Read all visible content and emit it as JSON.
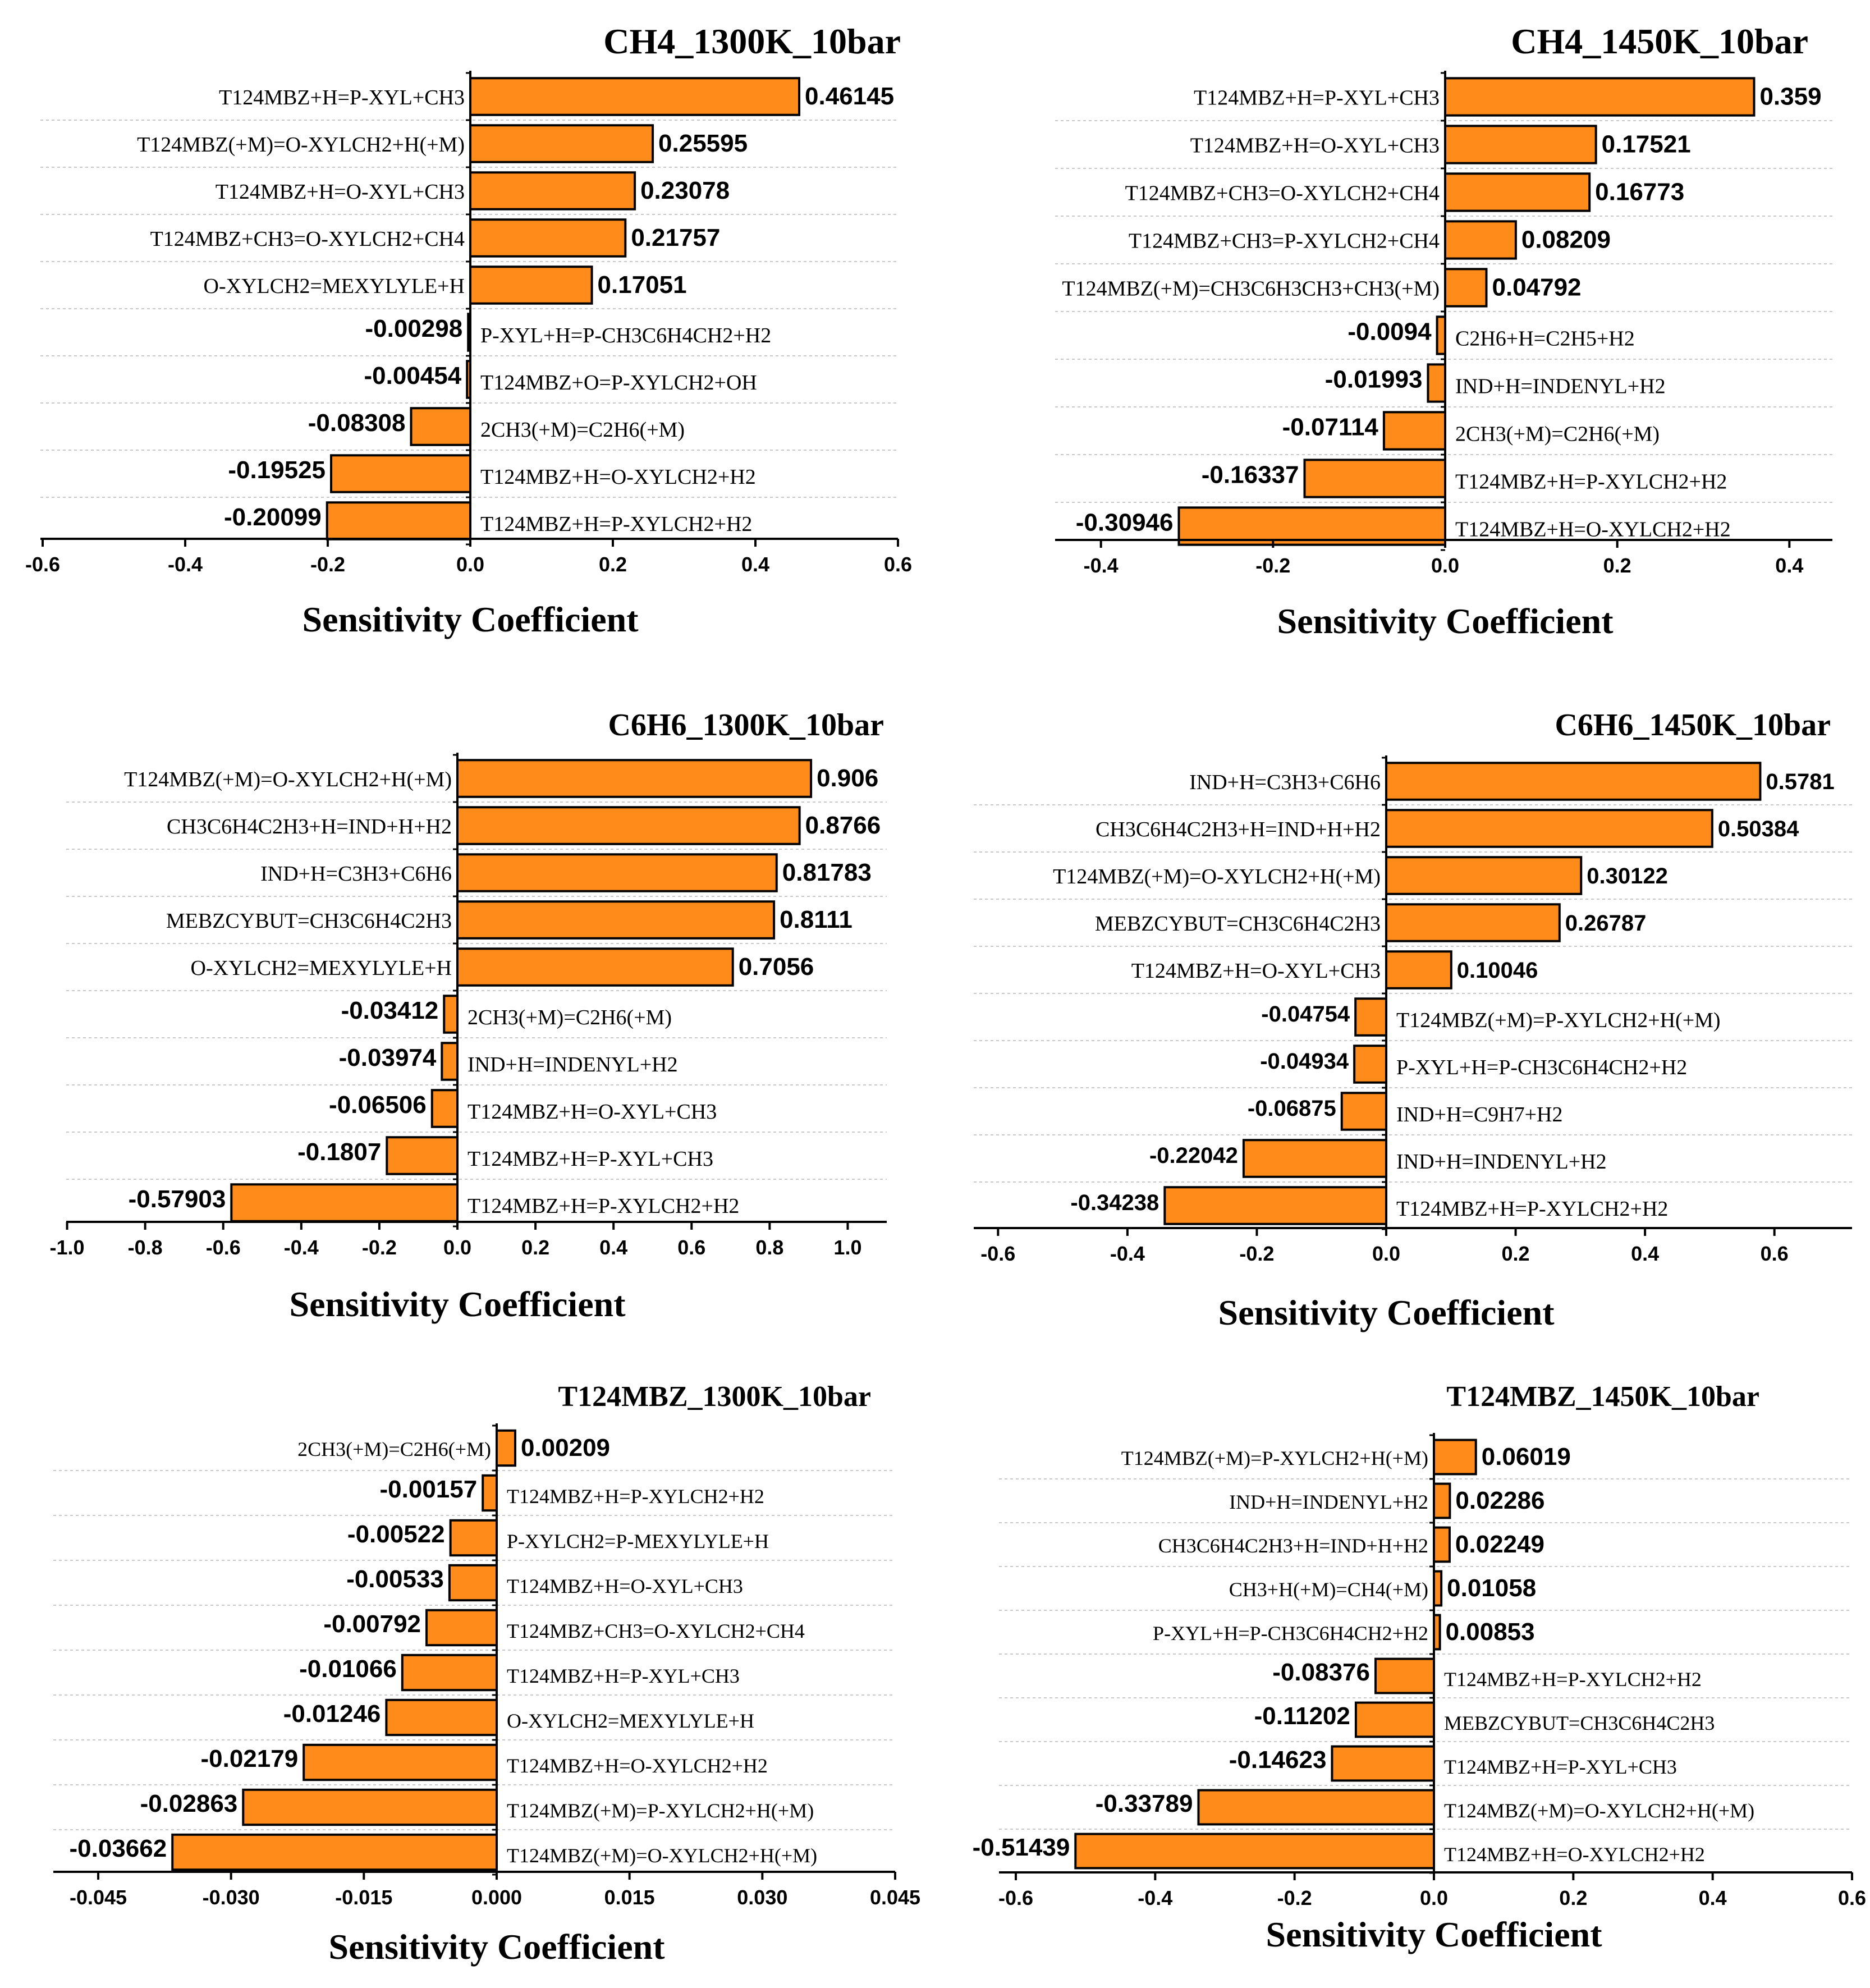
{
  "colors": {
    "bar": "#FF8C1A",
    "bar_edge": "#000000",
    "grid": "#C8C8C8",
    "axis": "#000000"
  },
  "chart_data": [
    {
      "type": "bar",
      "orientation": "horizontal",
      "title": "CH4_1300K_10bar",
      "xlabel": "Sensitivity Coefficient",
      "xlim": [
        -0.6,
        0.6
      ],
      "ticks": [
        -0.6,
        -0.4,
        -0.2,
        0.0,
        0.2,
        0.4,
        0.6
      ],
      "tick_labels": [
        "-0.6",
        "-0.4",
        "-0.2",
        "0.0",
        "0.2",
        "0.4",
        "0.6"
      ],
      "categories": [
        "T124MBZ+H=P-XYL+CH3",
        "T124MBZ(+M)=O-XYLCH2+H(+M)",
        "T124MBZ+H=O-XYL+CH3",
        "T124MBZ+CH3=O-XYLCH2+CH4",
        "O-XYLCH2=MEXYLYLE+H",
        "P-XYL+H=P-CH3C6H4CH2+H2",
        "T124MBZ+O=P-XYLCH2+OH",
        "2CH3(+M)=C2H6(+M)",
        "T124MBZ+H=O-XYLCH2+H2",
        "T124MBZ+H=P-XYLCH2+H2"
      ],
      "values": [
        0.46145,
        0.25595,
        0.23078,
        0.21757,
        0.17051,
        -0.00298,
        -0.00454,
        -0.08308,
        -0.19525,
        -0.20099
      ],
      "value_labels": [
        "0.46145",
        "0.25595",
        "0.23078",
        "0.21757",
        "0.17051",
        "-0.00298",
        "-0.00454",
        "-0.08308",
        "-0.19525",
        "-0.20099"
      ]
    },
    {
      "type": "bar",
      "orientation": "horizontal",
      "title": "CH4_1450K_10bar",
      "xlabel": "Sensitivity Coefficient",
      "xlim": [
        -0.45,
        0.45
      ],
      "ticks": [
        -0.4,
        -0.2,
        0.0,
        0.2,
        0.4
      ],
      "tick_labels": [
        "-0.4",
        "-0.2",
        "0.0",
        "0.2",
        "0.4"
      ],
      "categories": [
        "T124MBZ+H=P-XYL+CH3",
        "T124MBZ+H=O-XYL+CH3",
        "T124MBZ+CH3=O-XYLCH2+CH4",
        "T124MBZ+CH3=P-XYLCH2+CH4",
        "T124MBZ(+M)=CH3C6H3CH3+CH3(+M)",
        "C2H6+H=C2H5+H2",
        "IND+H=INDENYL+H2",
        "2CH3(+M)=C2H6(+M)",
        "T124MBZ+H=P-XYLCH2+H2",
        "T124MBZ+H=O-XYLCH2+H2"
      ],
      "values": [
        0.359,
        0.17521,
        0.16773,
        0.08209,
        0.04792,
        -0.0094,
        -0.01993,
        -0.07114,
        -0.16337,
        -0.30946
      ],
      "value_labels": [
        "0.359",
        "0.17521",
        "0.16773",
        "0.08209",
        "0.04792",
        "-0.0094",
        "-0.01993",
        "-0.07114",
        "-0.16337",
        "-0.30946"
      ]
    },
    {
      "type": "bar",
      "orientation": "horizontal",
      "title": "C6H6_1300K_10bar",
      "xlabel": "Sensitivity Coefficient",
      "xlim": [
        -1.0,
        1.1
      ],
      "ticks": [
        -1.0,
        -0.8,
        -0.6,
        -0.4,
        -0.2,
        0.0,
        0.2,
        0.4,
        0.6,
        0.8,
        1.0
      ],
      "tick_labels": [
        "-1.0",
        "-0.8",
        "-0.6",
        "-0.4",
        "-0.2",
        "0.0",
        "0.2",
        "0.4",
        "0.6",
        "0.8",
        "1.0"
      ],
      "categories": [
        "T124MBZ(+M)=O-XYLCH2+H(+M)",
        "CH3C6H4C2H3+H=IND+H+H2",
        "IND+H=C3H3+C6H6",
        "MEBZCYBUT=CH3C6H4C2H3",
        "O-XYLCH2=MEXYLYLE+H",
        "2CH3(+M)=C2H6(+M)",
        "IND+H=INDENYL+H2",
        "T124MBZ+H=O-XYL+CH3",
        "T124MBZ+H=P-XYL+CH3",
        "T124MBZ+H=P-XYLCH2+H2"
      ],
      "values": [
        0.906,
        0.8766,
        0.81783,
        0.8111,
        0.7056,
        -0.03412,
        -0.03974,
        -0.06506,
        -0.1807,
        -0.57903
      ],
      "value_labels": [
        "0.906",
        "0.8766",
        "0.81783",
        "0.8111",
        "0.7056",
        "-0.03412",
        "-0.03974",
        "-0.06506",
        "-0.1807",
        "-0.57903"
      ]
    },
    {
      "type": "bar",
      "orientation": "horizontal",
      "title": "C6H6_1450K_10bar",
      "xlabel": "Sensitivity Coefficient",
      "xlim": [
        -0.6,
        0.72
      ],
      "ticks": [
        -0.6,
        -0.4,
        -0.2,
        0.0,
        0.2,
        0.4,
        0.6
      ],
      "tick_labels": [
        "-0.6",
        "-0.4",
        "-0.2",
        "0.0",
        "0.2",
        "0.4",
        "0.6"
      ],
      "categories": [
        "IND+H=C3H3+C6H6",
        "CH3C6H4C2H3+H=IND+H+H2",
        "T124MBZ(+M)=O-XYLCH2+H(+M)",
        "MEBZCYBUT=CH3C6H4C2H3",
        "T124MBZ+H=O-XYL+CH3",
        "T124MBZ(+M)=P-XYLCH2+H(+M)",
        "P-XYL+H=P-CH3C6H4CH2+H2",
        "IND+H=C9H7+H2",
        "IND+H=INDENYL+H2",
        "T124MBZ+H=P-XYLCH2+H2"
      ],
      "values": [
        0.5781,
        0.50384,
        0.30122,
        0.26787,
        0.10046,
        -0.04754,
        -0.04934,
        -0.06875,
        -0.22042,
        -0.34238
      ],
      "value_labels": [
        "0.5781",
        "0.50384",
        "0.30122",
        "0.26787",
        "0.10046",
        "-0.04754",
        "-0.04934",
        "-0.06875",
        "-0.22042",
        "-0.34238"
      ]
    },
    {
      "type": "bar",
      "orientation": "horizontal",
      "title": "T124MBZ_1300K_10bar",
      "xlabel": "Sensitivity Coefficient",
      "xlim": [
        -0.045,
        0.045
      ],
      "ticks": [
        -0.045,
        -0.03,
        -0.015,
        0.0,
        0.015,
        0.03,
        0.045
      ],
      "tick_labels": [
        "-0.045",
        "-0.030",
        "-0.015",
        "0.000",
        "0.015",
        "0.030",
        "0.045"
      ],
      "categories": [
        "2CH3(+M)=C2H6(+M)",
        "T124MBZ+H=P-XYLCH2+H2",
        "P-XYLCH2=P-MEXYLYLE+H",
        "T124MBZ+H=O-XYL+CH3",
        "T124MBZ+CH3=O-XYLCH2+CH4",
        "T124MBZ+H=P-XYL+CH3",
        "O-XYLCH2=MEXYLYLE+H",
        "T124MBZ+H=O-XYLCH2+H2",
        "T124MBZ(+M)=P-XYLCH2+H(+M)",
        "T124MBZ(+M)=O-XYLCH2+H(+M)"
      ],
      "values": [
        0.00209,
        -0.00157,
        -0.00522,
        -0.00533,
        -0.00792,
        -0.01066,
        -0.01246,
        -0.02179,
        -0.02863,
        -0.03662
      ],
      "value_labels": [
        "0.00209",
        "-0.00157",
        "-0.00522",
        "-0.00533",
        "-0.00792",
        "-0.01066",
        "-0.01246",
        "-0.02179",
        "-0.02863",
        "-0.03662"
      ]
    },
    {
      "type": "bar",
      "orientation": "horizontal",
      "title": "T124MBZ_1450K_10bar",
      "xlabel": "Sensitivity Coefficient",
      "xlim": [
        -0.6,
        0.6
      ],
      "ticks": [
        -0.6,
        -0.4,
        -0.2,
        0.0,
        0.2,
        0.4,
        0.6
      ],
      "tick_labels": [
        "-0.6",
        "-0.4",
        "-0.2",
        "0.0",
        "0.2",
        "0.4",
        "0.6"
      ],
      "categories": [
        "T124MBZ(+M)=P-XYLCH2+H(+M)",
        "IND+H=INDENYL+H2",
        "CH3C6H4C2H3+H=IND+H+H2",
        "CH3+H(+M)=CH4(+M)",
        "P-XYL+H=P-CH3C6H4CH2+H2",
        "T124MBZ+H=P-XYLCH2+H2",
        "MEBZCYBUT=CH3C6H4C2H3",
        "T124MBZ+H=P-XYL+CH3",
        "T124MBZ(+M)=O-XYLCH2+H(+M)",
        "T124MBZ+H=O-XYLCH2+H2"
      ],
      "values": [
        0.06019,
        0.02286,
        0.02249,
        0.01058,
        0.00853,
        -0.08376,
        -0.11202,
        -0.14623,
        -0.33789,
        -0.51439
      ],
      "value_labels": [
        "0.06019",
        "0.02286",
        "0.02249",
        "0.01058",
        "0.00853",
        "-0.08376",
        "-0.11202",
        "-0.14623",
        "-0.33789",
        "-0.51439"
      ]
    }
  ]
}
